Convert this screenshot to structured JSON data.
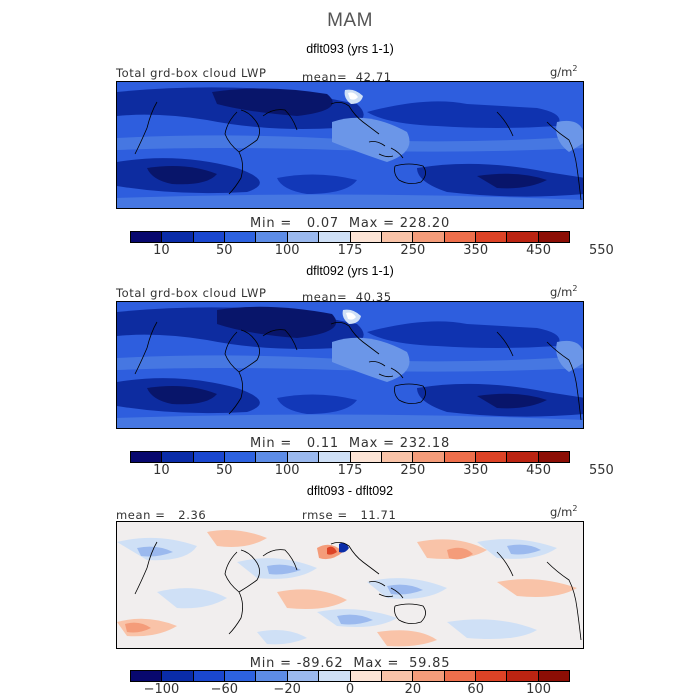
{
  "season": "MAM",
  "panels": [
    {
      "title": "dflt093 (yrs 1-1)",
      "label": "Total grd-box cloud LWP",
      "mean_label": "mean=",
      "mean_value": "42.71",
      "unit": "g/m",
      "unit_sup": "2",
      "min_label": "Min =",
      "min_value": "0.07",
      "max_label": "Max =",
      "max_value": "228.20",
      "colorbar_ticks": [
        "10",
        "50",
        "100",
        "175",
        "250",
        "350",
        "450",
        "550"
      ]
    },
    {
      "title": "dflt092 (yrs 1-1)",
      "label": "Total grd-box cloud LWP",
      "mean_label": "mean=",
      "mean_value": "40.35",
      "unit": "g/m",
      "unit_sup": "2",
      "min_label": "Min =",
      "min_value": "0.11",
      "max_label": "Max =",
      "max_value": "232.18",
      "colorbar_ticks": [
        "10",
        "50",
        "100",
        "175",
        "250",
        "350",
        "450",
        "550"
      ]
    },
    {
      "title": "dflt093 - dflt092",
      "mean_label": "mean =",
      "mean_value": "2.36",
      "rmse_label": "rmse =",
      "rmse_value": "11.71",
      "unit": "g/m",
      "unit_sup": "2",
      "min_label": "Min =",
      "min_value": "-89.62",
      "max_label": "Max =",
      "max_value": "59.85",
      "colorbar_ticks": [
        "−100",
        "−60",
        "−20",
        "0",
        "20",
        "60",
        "100"
      ]
    }
  ],
  "colors": {
    "colorbar_lwp": [
      "#08086e",
      "#0a2ca8",
      "#1a47cf",
      "#2d62e0",
      "#5d8ce6",
      "#9bb9ee",
      "#cfe0f6",
      "#fce4d6",
      "#f9c3a8",
      "#f49c7a",
      "#ee6f4c",
      "#dd4326",
      "#bb2412",
      "#8c0e05"
    ],
    "colorbar_diff": [
      "#08086e",
      "#0a2ca8",
      "#1a47cf",
      "#2d62e0",
      "#5d8ce6",
      "#9bb9ee",
      "#cfe0f6",
      "#fce4d6",
      "#f9c3a8",
      "#f49c7a",
      "#ee6f4c",
      "#dd4326",
      "#bb2412",
      "#8c0e05"
    ]
  }
}
